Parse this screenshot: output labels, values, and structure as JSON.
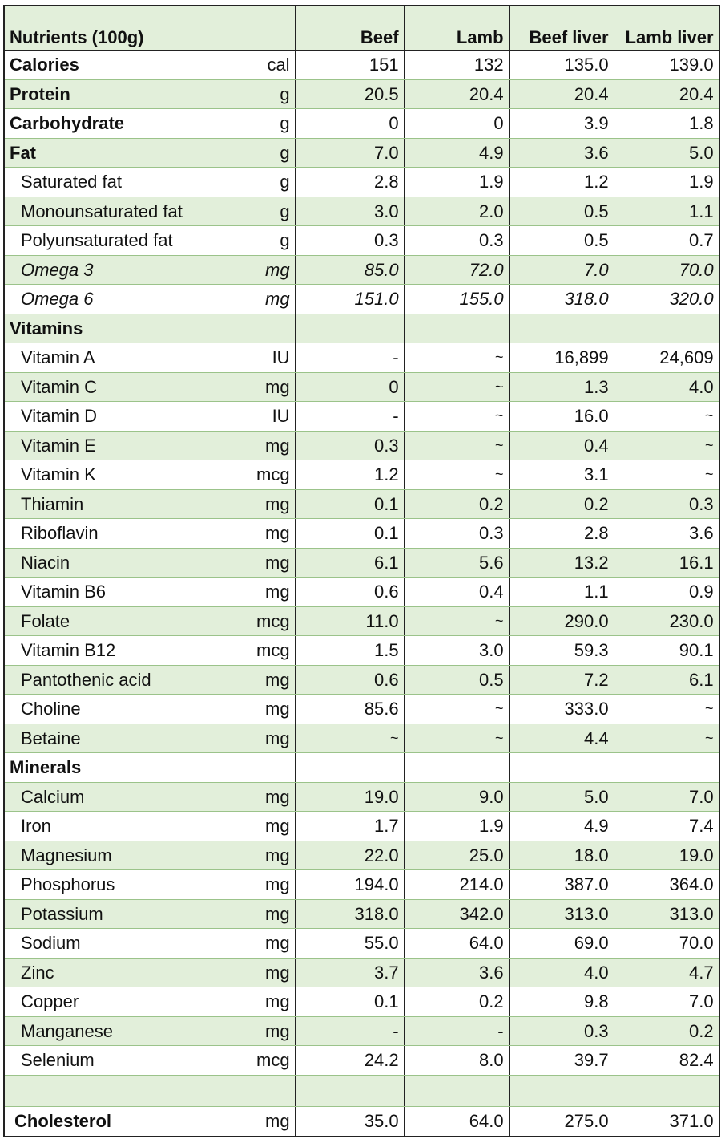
{
  "header": {
    "nutrient_label": "Nutrients (100g)",
    "columns": [
      "Beef",
      "Lamb",
      "Beef liver",
      "Lamb liver"
    ]
  },
  "colors": {
    "stripe": "#e2efda",
    "grid": "#9bc38a",
    "border": "#222222"
  },
  "rows": [
    {
      "name": "Calories",
      "unit": "cal",
      "values": [
        "151",
        "132",
        "135.0",
        "139.0"
      ],
      "style": "bold"
    },
    {
      "name": "Protein",
      "unit": "g",
      "values": [
        "20.5",
        "20.4",
        "20.4",
        "20.4"
      ],
      "style": "bold"
    },
    {
      "name": "Carbohydrate",
      "unit": "g",
      "values": [
        "0",
        "0",
        "3.9",
        "1.8"
      ],
      "style": "bold"
    },
    {
      "name": "Fat",
      "unit": "g",
      "values": [
        "7.0",
        "4.9",
        "3.6",
        "5.0"
      ],
      "style": "bold"
    },
    {
      "name": "Saturated fat",
      "unit": "g",
      "values": [
        "2.8",
        "1.9",
        "1.2",
        "1.9"
      ],
      "style": "sub"
    },
    {
      "name": "Monounsaturated fat",
      "unit": "g",
      "values": [
        "3.0",
        "2.0",
        "0.5",
        "1.1"
      ],
      "style": "sub"
    },
    {
      "name": "Polyunsaturated fat",
      "unit": "g",
      "values": [
        "0.3",
        "0.3",
        "0.5",
        "0.7"
      ],
      "style": "sub"
    },
    {
      "name": "Omega 3",
      "unit": "mg",
      "values": [
        "85.0",
        "72.0",
        "7.0",
        "70.0"
      ],
      "style": "sub ital"
    },
    {
      "name": "Omega 6",
      "unit": "mg",
      "values": [
        "151.0",
        "155.0",
        "318.0",
        "320.0"
      ],
      "style": "sub ital"
    },
    {
      "name": "Vitamins",
      "unit": "",
      "values": [
        "",
        "",
        "",
        ""
      ],
      "style": "section"
    },
    {
      "name": "Vitamin A",
      "unit": "IU",
      "values": [
        "-",
        "~",
        "16,899",
        "24,609"
      ],
      "style": "sub"
    },
    {
      "name": "Vitamin C",
      "unit": "mg",
      "values": [
        "0",
        "~",
        "1.3",
        "4.0"
      ],
      "style": "sub"
    },
    {
      "name": "Vitamin D",
      "unit": "IU",
      "values": [
        "-",
        "~",
        "16.0",
        "~"
      ],
      "style": "sub"
    },
    {
      "name": "Vitamin E",
      "unit": "mg",
      "values": [
        "0.3",
        "~",
        "0.4",
        "~"
      ],
      "style": "sub"
    },
    {
      "name": "Vitamin K",
      "unit": "mcg",
      "values": [
        "1.2",
        "~",
        "3.1",
        "~"
      ],
      "style": "sub"
    },
    {
      "name": "Thiamin",
      "unit": "mg",
      "values": [
        "0.1",
        "0.2",
        "0.2",
        "0.3"
      ],
      "style": "sub"
    },
    {
      "name": "Riboflavin",
      "unit": "mg",
      "values": [
        "0.1",
        "0.3",
        "2.8",
        "3.6"
      ],
      "style": "sub"
    },
    {
      "name": "Niacin",
      "unit": "mg",
      "values": [
        "6.1",
        "5.6",
        "13.2",
        "16.1"
      ],
      "style": "sub"
    },
    {
      "name": "Vitamin B6",
      "unit": "mg",
      "values": [
        "0.6",
        "0.4",
        "1.1",
        "0.9"
      ],
      "style": "sub"
    },
    {
      "name": "Folate",
      "unit": "mcg",
      "values": [
        "11.0",
        "~",
        "290.0",
        "230.0"
      ],
      "style": "sub"
    },
    {
      "name": "Vitamin B12",
      "unit": "mcg",
      "values": [
        "1.5",
        "3.0",
        "59.3",
        "90.1"
      ],
      "style": "sub"
    },
    {
      "name": "Pantothenic acid",
      "unit": "mg",
      "values": [
        "0.6",
        "0.5",
        "7.2",
        "6.1"
      ],
      "style": "sub"
    },
    {
      "name": "Choline",
      "unit": "mg",
      "values": [
        "85.6",
        "~",
        "333.0",
        "~"
      ],
      "style": "sub"
    },
    {
      "name": "Betaine",
      "unit": "mg",
      "values": [
        "~",
        "~",
        "4.4",
        "~"
      ],
      "style": "sub"
    },
    {
      "name": "Minerals",
      "unit": "",
      "values": [
        "",
        "",
        "",
        ""
      ],
      "style": "section"
    },
    {
      "name": "Calcium",
      "unit": "mg",
      "values": [
        "19.0",
        "9.0",
        "5.0",
        "7.0"
      ],
      "style": "sub"
    },
    {
      "name": "Iron",
      "unit": "mg",
      "values": [
        "1.7",
        "1.9",
        "4.9",
        "7.4"
      ],
      "style": "sub"
    },
    {
      "name": "Magnesium",
      "unit": "mg",
      "values": [
        "22.0",
        "25.0",
        "18.0",
        "19.0"
      ],
      "style": "sub"
    },
    {
      "name": "Phosphorus",
      "unit": "mg",
      "values": [
        "194.0",
        "214.0",
        "387.0",
        "364.0"
      ],
      "style": "sub"
    },
    {
      "name": "Potassium",
      "unit": "mg",
      "values": [
        "318.0",
        "342.0",
        "313.0",
        "313.0"
      ],
      "style": "sub"
    },
    {
      "name": "Sodium",
      "unit": "mg",
      "values": [
        "55.0",
        "64.0",
        "69.0",
        "70.0"
      ],
      "style": "sub"
    },
    {
      "name": "Zinc",
      "unit": "mg",
      "values": [
        "3.7",
        "3.6",
        "4.0",
        "4.7"
      ],
      "style": "sub"
    },
    {
      "name": "Copper",
      "unit": "mg",
      "values": [
        "0.1",
        "0.2",
        "9.8",
        "7.0"
      ],
      "style": "sub"
    },
    {
      "name": "Manganese",
      "unit": "mg",
      "values": [
        "-",
        "-",
        "0.3",
        "0.2"
      ],
      "style": "sub"
    },
    {
      "name": "Selenium",
      "unit": "mcg",
      "values": [
        "24.2",
        "8.0",
        "39.7",
        "82.4"
      ],
      "style": "sub"
    },
    {
      "name": "",
      "unit": "",
      "values": [
        "",
        "",
        "",
        ""
      ],
      "style": "spacer"
    },
    {
      "name": "Cholesterol",
      "unit": "mg",
      "values": [
        "35.0",
        "64.0",
        "275.0",
        "371.0"
      ],
      "style": "chol"
    }
  ]
}
